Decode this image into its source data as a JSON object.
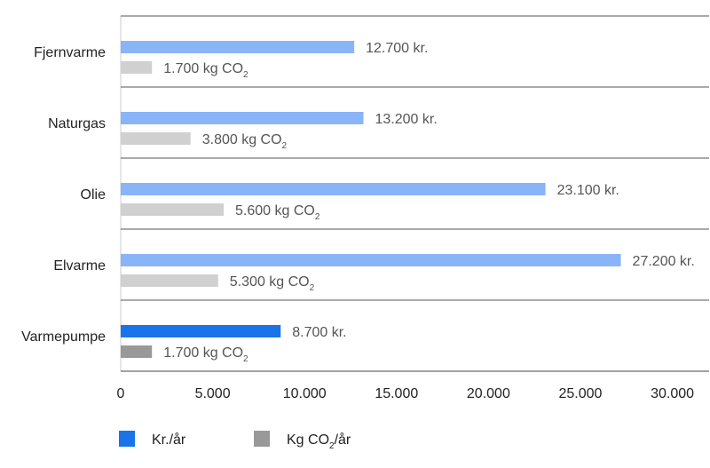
{
  "chart_data": {
    "type": "bar",
    "orientation": "horizontal",
    "categories": [
      "Fjernvarme",
      "Naturgas",
      "Olie",
      "Elvarme",
      "Varmepumpe"
    ],
    "series": [
      {
        "name": "Kr./år",
        "values": [
          12700,
          13200,
          23100,
          27200,
          8700
        ],
        "labels": [
          "12.700 kr.",
          "13.200 kr.",
          "23.100 kr.",
          "27.200 kr.",
          "8.700 kr."
        ],
        "color": "#8ab4f8",
        "highlight_color": "#1a73e8"
      },
      {
        "name": "Kg CO2/år",
        "values": [
          1700,
          3800,
          5600,
          5300,
          1700
        ],
        "labels": [
          "1.700 kg CO2",
          "3.800 kg CO2",
          "5.600 kg CO2",
          "5.300 kg CO2",
          "1.700 kg CO2"
        ],
        "color": "#d0d0d0",
        "highlight_color": "#999999"
      }
    ],
    "highlighted_category": "Varmepumpe",
    "xlim": [
      0,
      32000
    ],
    "x_ticks": [
      0,
      5000,
      10000,
      15000,
      20000,
      25000,
      30000
    ],
    "x_tick_labels": [
      "0",
      "5.000",
      "10.000",
      "15.000",
      "20.000",
      "25.000",
      "30.000"
    ],
    "legend": [
      {
        "label": "Kr./år",
        "color": "#1a73e8"
      },
      {
        "label": "Kg CO2/år",
        "color": "#999999"
      }
    ],
    "legend_position": "bottom-left",
    "grid": "horizontal separators between categories"
  }
}
